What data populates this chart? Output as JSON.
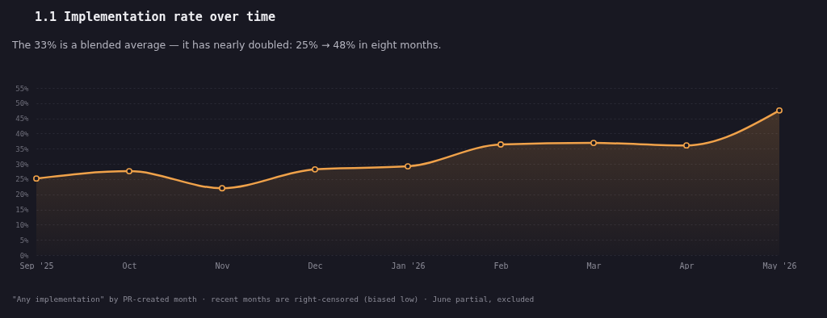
{
  "chart_data": {
    "type": "area",
    "title": "1.1 Implementation rate over time",
    "subtitle": "The 33% is a blended average — it has nearly doubled: 25% → 48% in eight months.",
    "annotations": [
      "\"Any implementation\" by PR-created month · recent months are right-censored (biased low) · June partial, excluded"
    ],
    "categories": [
      "Sep '25",
      "Oct",
      "Nov",
      "Dec",
      "Jan '26",
      "Feb",
      "Mar",
      "Apr",
      "May '26"
    ],
    "series": [
      {
        "color": "#f0a24a",
        "values": [
          25.2,
          27.6,
          22,
          28.2,
          29.2,
          36.4,
          36.9,
          36.1,
          47.6
        ]
      }
    ],
    "ylim": [
      0,
      55
    ],
    "yticks": [
      {
        "value": 0,
        "label": "0%"
      },
      {
        "value": 5,
        "label": "5%"
      },
      {
        "value": 10,
        "label": "10%"
      },
      {
        "value": 15,
        "label": "15%"
      },
      {
        "value": 20,
        "label": "20%"
      },
      {
        "value": 25,
        "label": "25%"
      },
      {
        "value": 30,
        "label": "30%"
      },
      {
        "value": 35,
        "label": "35%"
      },
      {
        "value": 40,
        "label": "40%"
      },
      {
        "value": 45,
        "label": "45%"
      },
      {
        "value": 50,
        "label": "50%"
      },
      {
        "value": 55,
        "label": "55%"
      }
    ],
    "grid": "y",
    "marker": "circle"
  }
}
